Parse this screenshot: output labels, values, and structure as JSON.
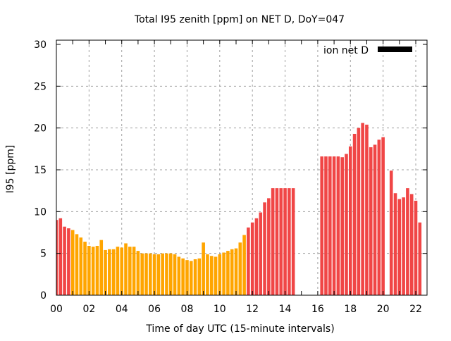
{
  "chart_data": {
    "type": "bar",
    "title": "Total I95 zenith [ppm] on NET D, DoY=047",
    "xlabel": "Time of day UTC (15-minute intervals)",
    "ylabel": "I95 [ppm]",
    "xlim": [
      0,
      22.75
    ],
    "ylim": [
      0,
      30
    ],
    "grid": true,
    "x_ticks": [
      "00",
      "02",
      "04",
      "06",
      "08",
      "10",
      "12",
      "14",
      "16",
      "18",
      "20",
      "22"
    ],
    "y_ticks": [
      "0",
      "5",
      "10",
      "15",
      "20",
      "25",
      "30"
    ],
    "legend": {
      "label": "ion net D",
      "color": "#000000",
      "placement": "top-right"
    },
    "threshold": 8,
    "colors": {
      "high": "#f04646",
      "low": "#ffa500"
    },
    "interval_hours": 0.25,
    "values": [
      9.0,
      9.2,
      8.2,
      8.0,
      7.8,
      7.3,
      6.9,
      6.4,
      5.9,
      5.8,
      5.9,
      6.6,
      5.4,
      5.5,
      5.5,
      5.8,
      5.7,
      6.2,
      5.8,
      5.8,
      5.3,
      5.0,
      5.0,
      5.0,
      4.9,
      4.9,
      5.0,
      5.0,
      5.0,
      4.9,
      4.6,
      4.4,
      4.2,
      4.1,
      4.3,
      4.4,
      6.3,
      4.9,
      4.7,
      4.6,
      4.9,
      5.1,
      5.3,
      5.5,
      5.6,
      6.3,
      7.2,
      8.1,
      8.7,
      9.2,
      9.9,
      11.1,
      11.6,
      12.8,
      12.8,
      12.8,
      12.8,
      12.8,
      12.8,
      null,
      null,
      null,
      null,
      null,
      null,
      16.6,
      16.6,
      16.6,
      16.6,
      16.6,
      16.5,
      16.9,
      17.8,
      19.3,
      20.0,
      20.6,
      20.4,
      17.7,
      18.0,
      18.6,
      18.9,
      null,
      14.9,
      12.2,
      11.5,
      11.7,
      12.8,
      12.1,
      11.3,
      8.7
    ]
  }
}
